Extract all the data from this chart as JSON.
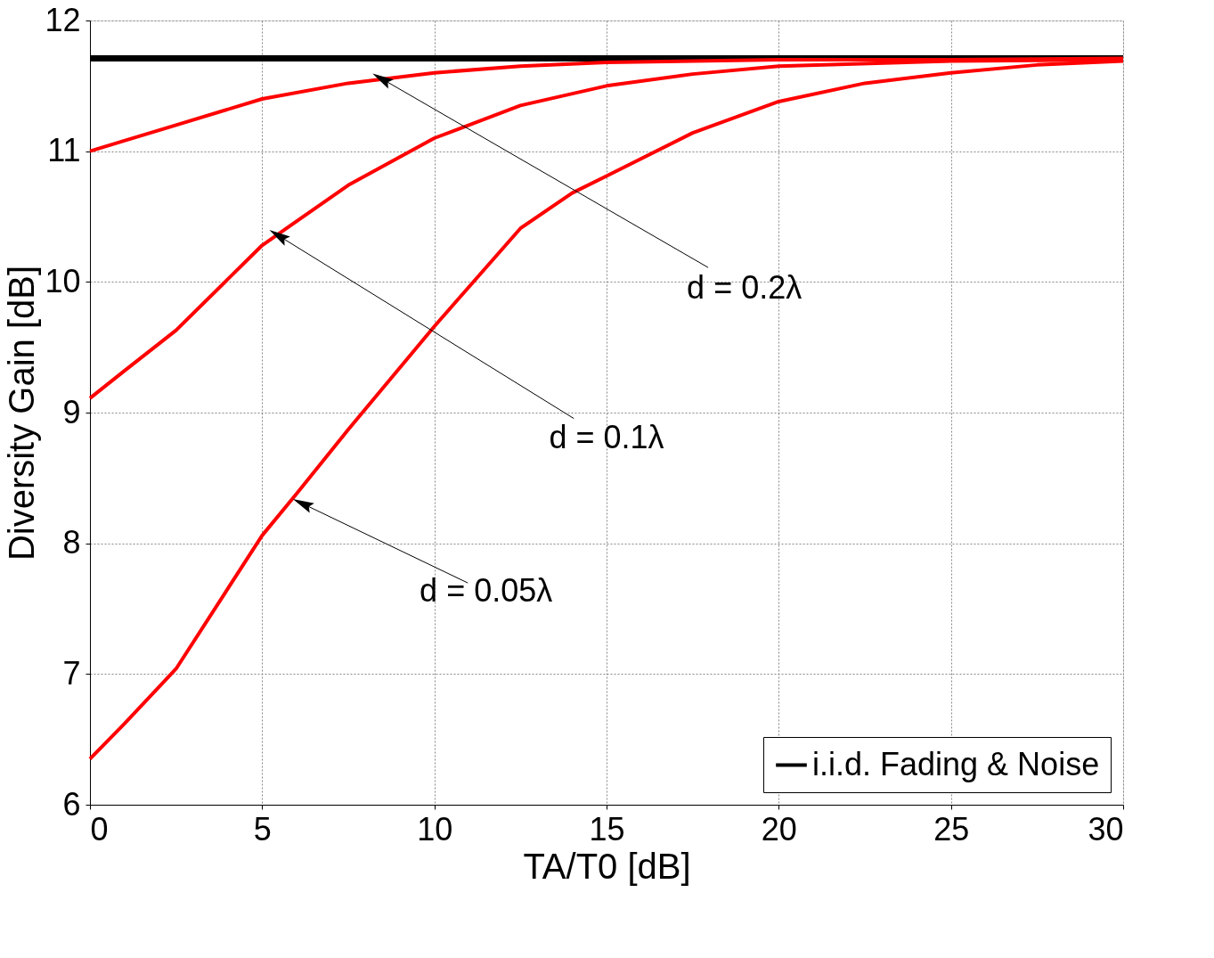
{
  "chart_data": {
    "type": "line",
    "xlabel": "TA/T0 [dB]",
    "ylabel": "Diversity Gain [dB]",
    "xlim": [
      0,
      30
    ],
    "ylim": [
      6,
      12
    ],
    "xticks": [
      0,
      5,
      10,
      15,
      20,
      25,
      30
    ],
    "yticks": [
      6,
      7,
      8,
      9,
      10,
      11,
      12
    ],
    "grid": true,
    "legend": "bottom right",
    "line_style": "solid",
    "marker": "none",
    "series": [
      {
        "name": "i.i.d. Fading & Noise",
        "color": "#000000",
        "x": [
          0,
          30
        ],
        "values": [
          11.71,
          11.71
        ]
      },
      {
        "color": "#ff0000",
        "x": [
          0,
          1,
          2.5,
          5,
          7.5,
          10,
          12.5,
          15,
          17.5,
          20,
          25,
          30
        ],
        "values": [
          11.0,
          11.08,
          11.2,
          11.4,
          11.52,
          11.6,
          11.65,
          11.68,
          11.69,
          11.7,
          11.7,
          11.71
        ]
      },
      {
        "color": "#ff0000",
        "x": [
          0,
          1,
          2.5,
          5,
          7.5,
          10,
          12.5,
          15,
          17.5,
          20,
          25,
          30
        ],
        "values": [
          9.11,
          9.32,
          9.63,
          10.28,
          10.74,
          11.1,
          11.35,
          11.5,
          11.59,
          11.65,
          11.69,
          11.7
        ]
      },
      {
        "color": "#ff0000",
        "x": [
          0,
          1,
          2.5,
          5,
          6,
          7.5,
          10,
          12.5,
          14,
          15,
          17.5,
          20,
          22.5,
          25,
          27.5,
          30
        ],
        "values": [
          6.35,
          6.62,
          7.04,
          8.06,
          8.38,
          8.87,
          9.66,
          10.41,
          10.68,
          10.81,
          11.14,
          11.38,
          11.52,
          11.6,
          11.66,
          11.69
        ]
      }
    ],
    "annotations": [
      {
        "text": "d = 0.2λ",
        "x": 8.5,
        "y": 11.55
      },
      {
        "text": "d = 0.1λ",
        "x": 5.5,
        "y": 10.35
      },
      {
        "text": "d = 0.05λ",
        "x": 6.2,
        "y": 8.3
      }
    ]
  }
}
